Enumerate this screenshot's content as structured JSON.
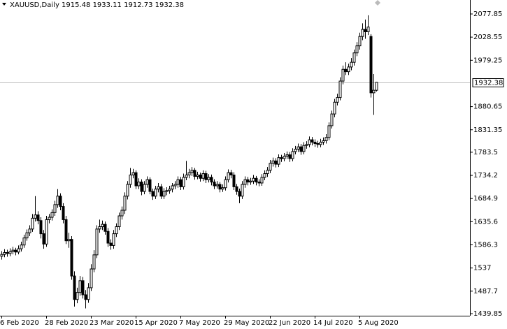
{
  "chart_data": {
    "type": "candlestick",
    "title": "XAUUSD,Daily  1915.48 1933.11 1912.73 1932.38",
    "bid": 1932.38,
    "ylim": [
      1435.4,
      2107.6
    ],
    "yticks": [
      1439.85,
      1487.7,
      1537,
      1586.3,
      1635.6,
      1684.9,
      1734.2,
      1783.5,
      1831.35,
      1880.65,
      1979.25,
      2028.55,
      2077.85
    ],
    "up_color": "#ffffff",
    "down_color": "#000000",
    "categories": [
      "6 Feb 2020",
      null,
      null,
      null,
      null,
      null,
      null,
      null,
      null,
      null,
      null,
      null,
      null,
      null,
      null,
      null,
      "28 Feb 2020",
      null,
      null,
      null,
      null,
      null,
      null,
      null,
      null,
      null,
      null,
      null,
      null,
      null,
      null,
      null,
      "23 Mar 2020",
      null,
      null,
      null,
      null,
      null,
      null,
      null,
      null,
      null,
      null,
      null,
      null,
      null,
      null,
      null,
      "15 Apr 2020",
      null,
      null,
      null,
      null,
      null,
      null,
      null,
      null,
      null,
      null,
      null,
      null,
      null,
      null,
      null,
      "7 May 2020",
      null,
      null,
      null,
      null,
      null,
      null,
      null,
      null,
      null,
      null,
      null,
      null,
      null,
      null,
      null,
      "29 May 2020",
      null,
      null,
      null,
      null,
      null,
      null,
      null,
      null,
      null,
      null,
      null,
      null,
      null,
      null,
      null,
      "22 Jun 2020",
      null,
      null,
      null,
      null,
      null,
      null,
      null,
      null,
      null,
      null,
      null,
      null,
      null,
      null,
      null,
      "14 Jul 2020",
      null,
      null,
      null,
      null,
      null,
      null,
      null,
      null,
      null,
      null,
      null,
      null,
      null,
      null,
      null,
      "5 Aug 2020",
      null,
      null,
      null,
      null,
      null,
      null
    ],
    "ohlc": [
      [
        1562,
        1573,
        1555,
        1566
      ],
      [
        1566,
        1577,
        1560,
        1570
      ],
      [
        1570,
        1576,
        1561,
        1568
      ],
      [
        1568,
        1579,
        1562,
        1572
      ],
      [
        1572,
        1582,
        1566,
        1575
      ],
      [
        1575,
        1580,
        1564,
        1571
      ],
      [
        1571,
        1585,
        1566,
        1578
      ],
      [
        1578,
        1593,
        1572,
        1586
      ],
      [
        1586,
        1608,
        1580,
        1601
      ],
      [
        1601,
        1619,
        1595,
        1612
      ],
      [
        1612,
        1628,
        1605,
        1620
      ],
      [
        1620,
        1652,
        1614,
        1643
      ],
      [
        1643,
        1690,
        1636,
        1650
      ],
      [
        1650,
        1658,
        1630,
        1638
      ],
      [
        1638,
        1645,
        1600,
        1610
      ],
      [
        1610,
        1618,
        1578,
        1588
      ],
      [
        1588,
        1648,
        1582,
        1640
      ],
      [
        1640,
        1652,
        1632,
        1645
      ],
      [
        1645,
        1662,
        1638,
        1655
      ],
      [
        1655,
        1680,
        1648,
        1672
      ],
      [
        1672,
        1705,
        1665,
        1690
      ],
      [
        1690,
        1696,
        1660,
        1668
      ],
      [
        1668,
        1675,
        1632,
        1640
      ],
      [
        1640,
        1648,
        1588,
        1595
      ],
      [
        1595,
        1612,
        1580,
        1598
      ],
      [
        1598,
        1605,
        1512,
        1520
      ],
      [
        1520,
        1530,
        1455,
        1470
      ],
      [
        1470,
        1495,
        1462,
        1485
      ],
      [
        1485,
        1520,
        1478,
        1510
      ],
      [
        1510,
        1518,
        1472,
        1480
      ],
      [
        1480,
        1490,
        1451,
        1470
      ],
      [
        1470,
        1505,
        1463,
        1495
      ],
      [
        1495,
        1545,
        1488,
        1535
      ],
      [
        1535,
        1575,
        1528,
        1565
      ],
      [
        1565,
        1628,
        1558,
        1620
      ],
      [
        1620,
        1640,
        1612,
        1625
      ],
      [
        1625,
        1638,
        1618,
        1630
      ],
      [
        1630,
        1636,
        1608,
        1615
      ],
      [
        1615,
        1622,
        1582,
        1590
      ],
      [
        1590,
        1598,
        1576,
        1585
      ],
      [
        1585,
        1618,
        1578,
        1610
      ],
      [
        1610,
        1632,
        1603,
        1625
      ],
      [
        1625,
        1655,
        1618,
        1648
      ],
      [
        1648,
        1668,
        1640,
        1660
      ],
      [
        1660,
        1698,
        1652,
        1690
      ],
      [
        1690,
        1722,
        1683,
        1715
      ],
      [
        1715,
        1750,
        1708,
        1735
      ],
      [
        1735,
        1748,
        1728,
        1740
      ],
      [
        1740,
        1745,
        1705,
        1712
      ],
      [
        1712,
        1728,
        1705,
        1720
      ],
      [
        1720,
        1726,
        1692,
        1700
      ],
      [
        1700,
        1722,
        1694,
        1715
      ],
      [
        1715,
        1732,
        1708,
        1725
      ],
      [
        1725,
        1730,
        1694,
        1700
      ],
      [
        1700,
        1706,
        1682,
        1690
      ],
      [
        1690,
        1712,
        1684,
        1705
      ],
      [
        1705,
        1718,
        1698,
        1710
      ],
      [
        1710,
        1716,
        1684,
        1690
      ],
      [
        1690,
        1707,
        1684,
        1700
      ],
      [
        1700,
        1709,
        1692,
        1702
      ],
      [
        1702,
        1712,
        1695,
        1705
      ],
      [
        1705,
        1718,
        1698,
        1712
      ],
      [
        1712,
        1722,
        1705,
        1715
      ],
      [
        1715,
        1732,
        1708,
        1725
      ],
      [
        1725,
        1731,
        1703,
        1710
      ],
      [
        1710,
        1738,
        1704,
        1730
      ],
      [
        1730,
        1765,
        1724,
        1735
      ],
      [
        1735,
        1748,
        1728,
        1740
      ],
      [
        1740,
        1752,
        1733,
        1745
      ],
      [
        1745,
        1750,
        1725,
        1732
      ],
      [
        1732,
        1742,
        1726,
        1735
      ],
      [
        1735,
        1740,
        1721,
        1728
      ],
      [
        1728,
        1745,
        1722,
        1738
      ],
      [
        1738,
        1744,
        1718,
        1725
      ],
      [
        1725,
        1737,
        1719,
        1730
      ],
      [
        1730,
        1736,
        1713,
        1720
      ],
      [
        1720,
        1726,
        1705,
        1712
      ],
      [
        1712,
        1722,
        1706,
        1715
      ],
      [
        1715,
        1720,
        1698,
        1705
      ],
      [
        1705,
        1715,
        1699,
        1708
      ],
      [
        1708,
        1732,
        1702,
        1725
      ],
      [
        1725,
        1747,
        1719,
        1740
      ],
      [
        1740,
        1746,
        1728,
        1735
      ],
      [
        1735,
        1741,
        1703,
        1710
      ],
      [
        1710,
        1716,
        1693,
        1700
      ],
      [
        1700,
        1706,
        1675,
        1690
      ],
      [
        1690,
        1722,
        1684,
        1715
      ],
      [
        1715,
        1732,
        1708,
        1725
      ],
      [
        1725,
        1731,
        1713,
        1720
      ],
      [
        1720,
        1729,
        1714,
        1722
      ],
      [
        1722,
        1735,
        1716,
        1728
      ],
      [
        1728,
        1733,
        1713,
        1720
      ],
      [
        1720,
        1726,
        1711,
        1718
      ],
      [
        1718,
        1737,
        1712,
        1730
      ],
      [
        1730,
        1745,
        1724,
        1738
      ],
      [
        1738,
        1752,
        1731,
        1745
      ],
      [
        1745,
        1767,
        1739,
        1760
      ],
      [
        1760,
        1772,
        1753,
        1765
      ],
      [
        1765,
        1771,
        1751,
        1758
      ],
      [
        1758,
        1779,
        1752,
        1772
      ],
      [
        1772,
        1778,
        1763,
        1770
      ],
      [
        1770,
        1782,
        1764,
        1775
      ],
      [
        1775,
        1785,
        1769,
        1778
      ],
      [
        1778,
        1784,
        1763,
        1770
      ],
      [
        1770,
        1792,
        1764,
        1785
      ],
      [
        1785,
        1797,
        1779,
        1790
      ],
      [
        1790,
        1802,
        1784,
        1795
      ],
      [
        1795,
        1801,
        1778,
        1785
      ],
      [
        1785,
        1805,
        1779,
        1798
      ],
      [
        1798,
        1807,
        1791,
        1800
      ],
      [
        1800,
        1817,
        1794,
        1810
      ],
      [
        1810,
        1816,
        1798,
        1805
      ],
      [
        1805,
        1811,
        1795,
        1802
      ],
      [
        1802,
        1808,
        1793,
        1800
      ],
      [
        1800,
        1812,
        1794,
        1805
      ],
      [
        1805,
        1815,
        1799,
        1808
      ],
      [
        1808,
        1822,
        1802,
        1815
      ],
      [
        1815,
        1847,
        1809,
        1840
      ],
      [
        1840,
        1872,
        1834,
        1865
      ],
      [
        1865,
        1897,
        1858,
        1890
      ],
      [
        1890,
        1908,
        1883,
        1900
      ],
      [
        1900,
        1943,
        1894,
        1935
      ],
      [
        1935,
        1968,
        1928,
        1960
      ],
      [
        1960,
        1975,
        1948,
        1955
      ],
      [
        1955,
        1972,
        1948,
        1965
      ],
      [
        1965,
        1984,
        1958,
        1975
      ],
      [
        1975,
        2002,
        1968,
        1995
      ],
      [
        1995,
        2018,
        1988,
        2010
      ],
      [
        2010,
        2038,
        2002,
        2030
      ],
      [
        2030,
        2058,
        2022,
        2045
      ],
      [
        2045,
        2066,
        2025,
        2040
      ],
      [
        2040,
        2075,
        2033,
        2050
      ],
      [
        2030,
        2035,
        1900,
        1910
      ],
      [
        1910,
        1950,
        1863,
        1915.48
      ],
      [
        1915.48,
        1933.11,
        1912.73,
        1932.38
      ]
    ]
  }
}
